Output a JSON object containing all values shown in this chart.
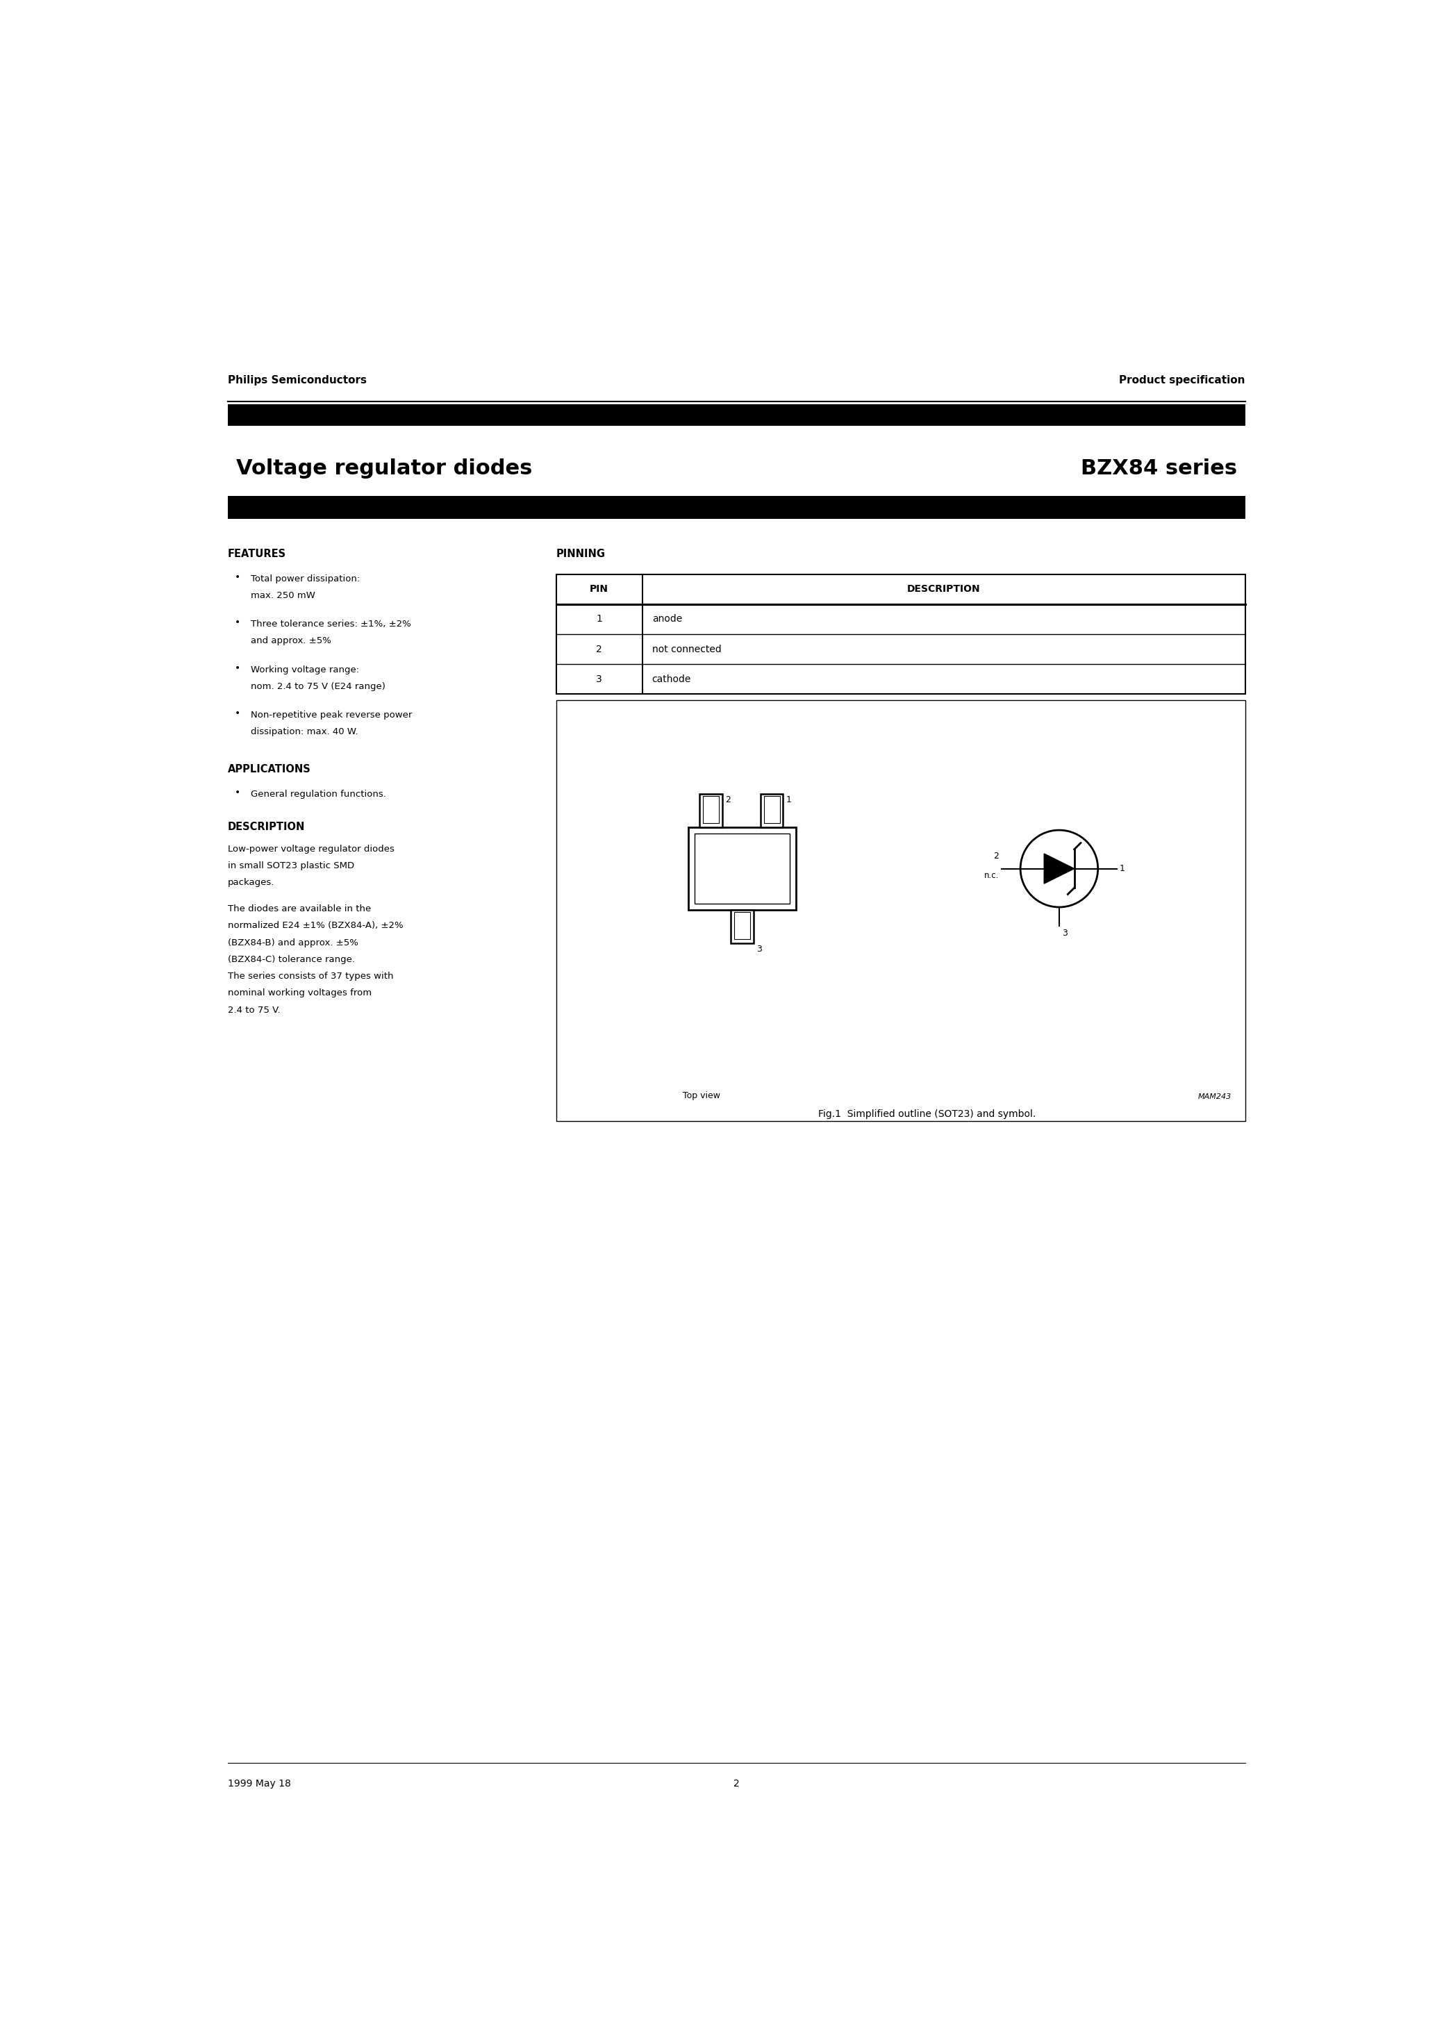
{
  "page_title_left": "Voltage regulator diodes",
  "page_title_right": "BZX84 series",
  "header_left": "Philips Semiconductors",
  "header_right": "Product specification",
  "features_title": "FEATURES",
  "features": [
    "Total power dissipation:\nmax. 250 mW",
    "Three tolerance series: ±1%, ±2%\nand approx. ±5%",
    "Working voltage range:\nnom. 2.4 to 75 V (E24 range)",
    "Non-repetitive peak reverse power\ndissipation: max. 40 W."
  ],
  "applications_title": "APPLICATIONS",
  "applications": [
    "General regulation functions."
  ],
  "description_title": "DESCRIPTION",
  "description_text": "Low-power voltage regulator diodes\nin small SOT23 plastic SMD\npackages.\n\nThe diodes are available in the\nnormalized E24 ±1% (BZX84-A), ±2%\n(BZX84-B) and approx. ±5%\n(BZX84-C) tolerance range.\nThe series consists of 37 types with\nnominal working voltages from\n2.4 to 75 V.",
  "pinning_title": "PINNING",
  "pin_header": [
    "PIN",
    "DESCRIPTION"
  ],
  "pins": [
    [
      "1",
      "anode"
    ],
    [
      "2",
      "not connected"
    ],
    [
      "3",
      "cathode"
    ]
  ],
  "fig_caption": "Fig.1  Simplified outline (SOT23) and symbol.",
  "footer_left": "1999 May 18",
  "footer_center": "2",
  "bg_color": "#ffffff",
  "text_color": "#000000",
  "bar_color": "#000000"
}
